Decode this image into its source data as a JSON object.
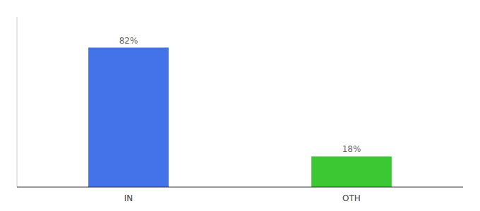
{
  "chart_data": {
    "type": "bar",
    "categories": [
      "IN",
      "OTH"
    ],
    "values": [
      82,
      18
    ],
    "colors": [
      "#4472e8",
      "#3cc832"
    ],
    "value_labels": [
      "82%",
      "18%"
    ],
    "data_labels": true,
    "ylim": [
      0,
      100
    ],
    "tick_labels": "x"
  }
}
